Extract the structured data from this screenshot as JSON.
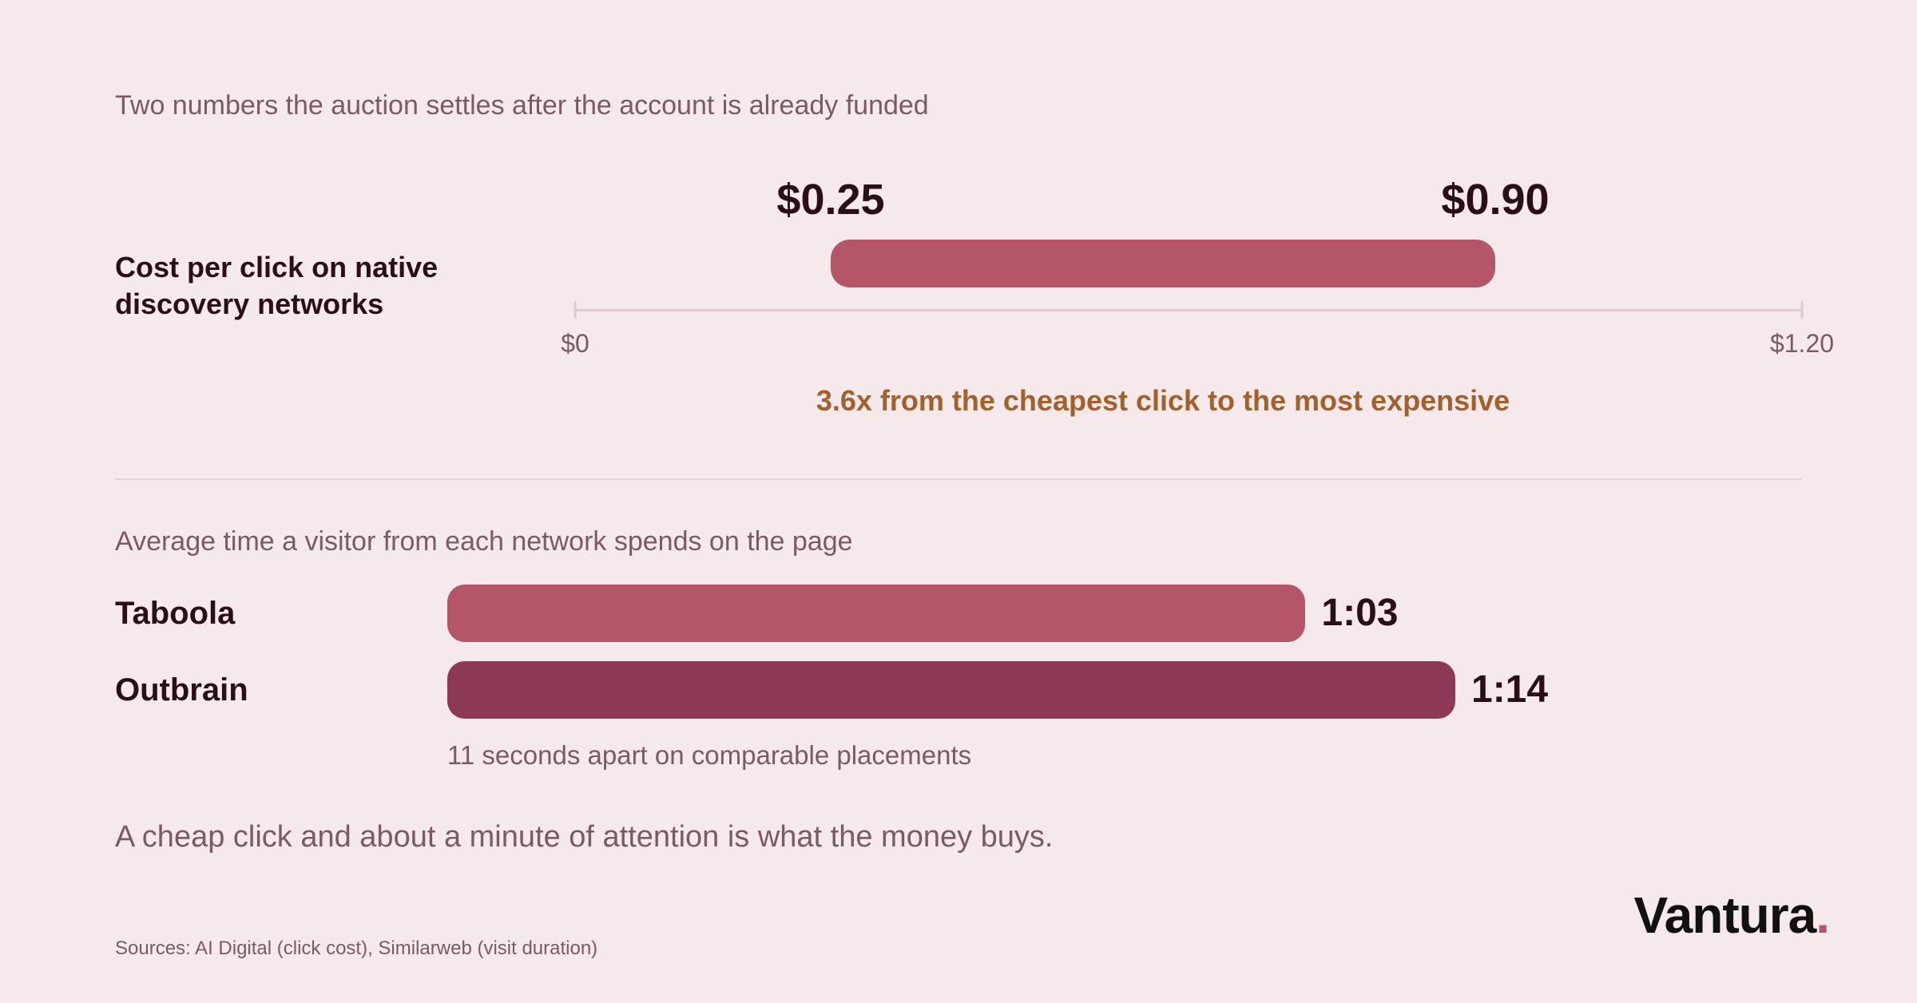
{
  "subtitle": "Two numbers the auction settles after the account is already funded",
  "chart_data": [
    {
      "type": "range",
      "label": "Cost per click on native discovery networks",
      "min_value": 0.25,
      "max_value": 0.9,
      "min_label": "$0.25",
      "max_label": "$0.90",
      "xlim": [
        0,
        1.2
      ],
      "tick_labels": [
        "$0",
        "$1.20"
      ],
      "annotation": "3.6x from the cheapest click to the most expensive",
      "color": "#b55668",
      "annotation_color": "#a5602a"
    },
    {
      "type": "bar",
      "title": "Average time a visitor from each network spends on the page",
      "categories": [
        "Taboola",
        "Outbrain"
      ],
      "values": [
        63,
        74
      ],
      "value_labels": [
        "1:03",
        "1:14"
      ],
      "colors": [
        "#b55668",
        "#8c3856"
      ],
      "annotation": "11 seconds apart on comparable placements"
    }
  ],
  "takeaway": "A cheap click and about a minute of attention is what the money buys.",
  "sources": "Sources: AI Digital (click cost), Similarweb (visit duration)",
  "logo": {
    "text": "Vantura",
    "dot": ".",
    "dot_color": "#b55668"
  }
}
